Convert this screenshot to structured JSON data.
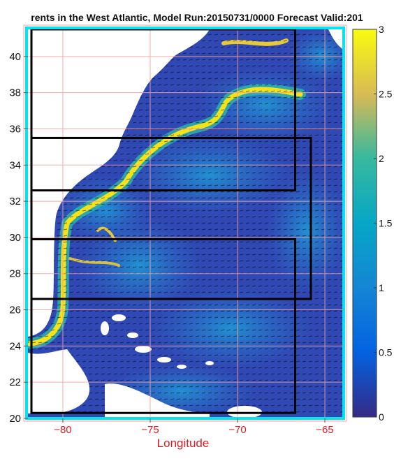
{
  "title": "rents in the West Atlantic, Model Run:20150731/0000 Forecast Valid:201",
  "map": {
    "lon_range": [
      -82,
      -64
    ],
    "lat_range": [
      20,
      41.5
    ],
    "x_label": "Longitude",
    "x_ticks": [
      -80,
      -75,
      -70,
      -65
    ],
    "x_tick_labels": [
      "−80",
      "−75",
      "−70",
      "−65"
    ],
    "y_ticks": [
      20,
      22,
      24,
      26,
      28,
      30,
      32,
      34,
      36,
      38,
      40
    ],
    "y_tick_labels": [
      "20",
      "22",
      "24",
      "26",
      "28",
      "30",
      "32",
      "34",
      "36",
      "38",
      "40"
    ],
    "grid": true,
    "grid_color": "#f2a0a0",
    "frame_color": "#00e5ee",
    "land_color": "#ffffff",
    "ocean_low_color": "#2b3a9c",
    "ocean_mid_color": "#2f7fd8",
    "stream_color": "#f5e31a",
    "vector_color": "#000000",
    "regions": [
      {
        "name": "box-north",
        "lon": [
          -81.8,
          -66.7
        ],
        "lat": [
          32.6,
          41.5
        ]
      },
      {
        "name": "box-middle",
        "lon": [
          -81.8,
          -65.8
        ],
        "lat": [
          26.6,
          35.5
        ]
      },
      {
        "name": "box-south",
        "lon": [
          -81.8,
          -66.7
        ],
        "lat": [
          20.3,
          29.9
        ]
      }
    ]
  },
  "colorbar": {
    "range": [
      0,
      3
    ],
    "ticks": [
      0,
      0.5,
      1,
      1.5,
      2,
      2.5,
      3
    ],
    "tick_labels": [
      "0",
      "0.5",
      "1",
      "1.5",
      "2",
      "2.5",
      "3"
    ],
    "colormap": "parula"
  }
}
